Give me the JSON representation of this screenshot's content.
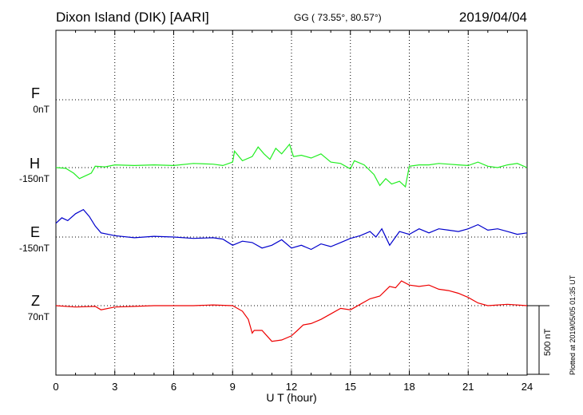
{
  "header": {
    "station": "Dixon Island (DIK)  [AARI]",
    "coords": "GG ( 73.55°,  80.57°)",
    "date": "2019/04/04"
  },
  "footer": {
    "plotted": "Plotted at 2019/05/05 01:35 UT"
  },
  "chart_data": {
    "type": "line",
    "title": "Dixon Island (DIK)  [AARI]",
    "xlabel": "U T (hour)",
    "ylabel": "",
    "xlim": [
      0,
      24
    ],
    "xticks": [
      0,
      3,
      6,
      9,
      12,
      15,
      18,
      21,
      24
    ],
    "grid": true,
    "scale_bar": {
      "value": 500,
      "label": "500 nT"
    },
    "colors": {
      "F": "#f5a300",
      "H": "#22ee22",
      "E": "#0000cc",
      "Z": "#ee0000"
    },
    "channels": [
      {
        "name": "F",
        "baseline": "0nT"
      },
      {
        "name": "H",
        "baseline": "-150nT"
      },
      {
        "name": "E",
        "baseline": "-150nT"
      },
      {
        "name": "Z",
        "baseline": "70nT"
      }
    ],
    "series": [
      {
        "name": "H",
        "x": [
          0,
          0.5,
          0.9,
          1.2,
          1.5,
          1.8,
          2.0,
          2.5,
          3,
          4,
          5,
          6,
          7,
          8,
          8.5,
          9.0,
          9.1,
          9.5,
          10,
          10.3,
          10.6,
          10.9,
          11.2,
          11.5,
          11.9,
          12.1,
          12.5,
          13,
          13.5,
          14,
          14.5,
          15.0,
          15.2,
          15.7,
          16.2,
          16.5,
          16.8,
          17.1,
          17.5,
          17.8,
          18.0,
          18.5,
          19,
          19.5,
          20,
          20.5,
          21,
          21.5,
          22,
          22.5,
          23,
          23.5,
          24
        ],
        "values": [
          0,
          -5,
          -40,
          -80,
          -60,
          -40,
          10,
          5,
          20,
          15,
          20,
          15,
          30,
          25,
          15,
          40,
          120,
          50,
          80,
          150,
          100,
          60,
          140,
          100,
          170,
          80,
          90,
          70,
          100,
          40,
          30,
          -10,
          50,
          20,
          -50,
          -130,
          -80,
          -120,
          -100,
          -140,
          10,
          20,
          20,
          30,
          25,
          20,
          15,
          40,
          10,
          0,
          20,
          30,
          0
        ]
      },
      {
        "name": "E",
        "x": [
          0,
          0.3,
          0.6,
          1.0,
          1.4,
          1.7,
          2.0,
          2.3,
          3,
          4,
          5,
          6,
          7,
          8,
          8.5,
          9,
          9.5,
          10,
          10.5,
          11,
          11.5,
          12,
          12.5,
          13,
          13.5,
          14,
          14.5,
          15,
          15.5,
          16,
          16.3,
          16.6,
          17,
          17.5,
          18,
          18.5,
          19,
          19.5,
          20,
          20.5,
          21,
          21.5,
          22,
          22.5,
          23,
          23.5,
          24
        ],
        "values": [
          100,
          140,
          120,
          170,
          200,
          150,
          80,
          30,
          10,
          -5,
          5,
          0,
          -10,
          -5,
          -15,
          -60,
          -30,
          -40,
          -80,
          -60,
          -20,
          -80,
          -60,
          -90,
          -50,
          -70,
          -40,
          -10,
          10,
          40,
          0,
          60,
          -60,
          40,
          20,
          60,
          30,
          60,
          50,
          40,
          60,
          90,
          50,
          60,
          40,
          20,
          30
        ]
      },
      {
        "name": "Z",
        "x": [
          0,
          1,
          2,
          2.3,
          3,
          4,
          5,
          6,
          7,
          8,
          9,
          9.5,
          9.8,
          10.0,
          10.1,
          10.5,
          11,
          11.5,
          12,
          12.3,
          12.6,
          13,
          13.5,
          14,
          14.5,
          15,
          15.5,
          16,
          16.5,
          17,
          17.3,
          17.6,
          18.0,
          18.5,
          19,
          19.5,
          20,
          20.5,
          21,
          21.5,
          22,
          23,
          24
        ],
        "values": [
          0,
          -10,
          -5,
          -30,
          -10,
          -5,
          0,
          0,
          0,
          5,
          0,
          -40,
          -100,
          -200,
          -180,
          -180,
          -260,
          -250,
          -220,
          -180,
          -140,
          -130,
          -100,
          -60,
          -20,
          -30,
          10,
          50,
          70,
          140,
          130,
          180,
          150,
          140,
          150,
          120,
          110,
          90,
          60,
          20,
          0,
          10,
          0
        ]
      }
    ]
  }
}
